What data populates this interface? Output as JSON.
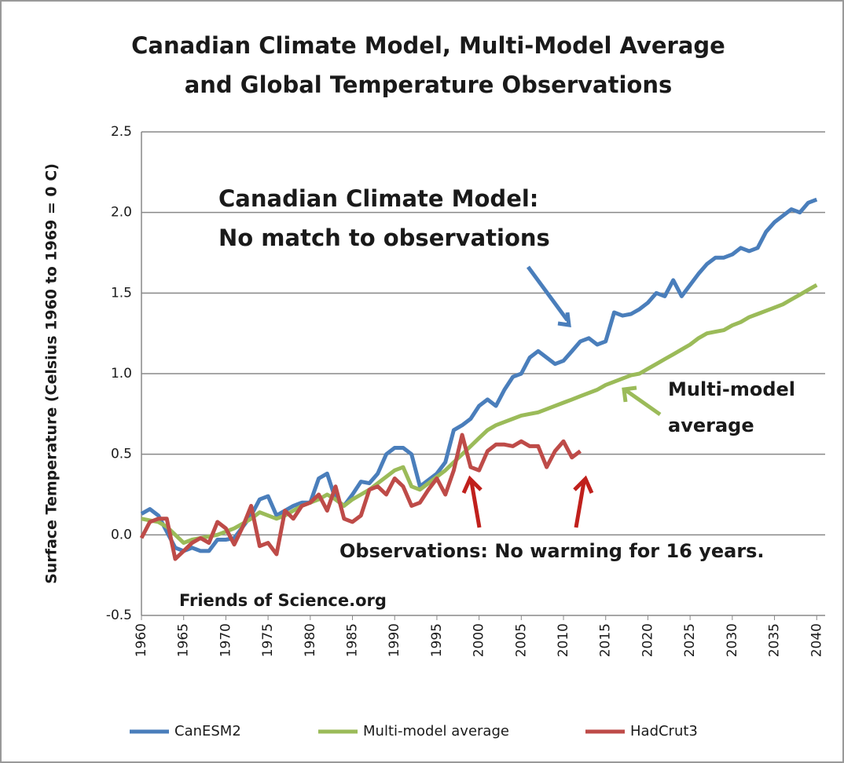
{
  "chart_data": {
    "type": "line",
    "title": [
      "Canadian Climate Model, Multi-Model Average",
      "and Global Temperature Observations"
    ],
    "y_label": "Surface Temperature  (Celsius 1960 to 1969 = 0 C)",
    "annotations": [
      "Canadian Climate Model:",
      "No match to observations",
      "Multi-model",
      "average",
      "Observations: No warming for 16 years.",
      "Friends of Science.org"
    ],
    "x": [
      1960,
      1961,
      1962,
      1963,
      1964,
      1965,
      1966,
      1967,
      1968,
      1969,
      1970,
      1971,
      1972,
      1973,
      1974,
      1975,
      1976,
      1977,
      1978,
      1979,
      1980,
      1981,
      1982,
      1983,
      1984,
      1985,
      1986,
      1987,
      1988,
      1989,
      1990,
      1991,
      1992,
      1993,
      1994,
      1995,
      1996,
      1997,
      1998,
      1999,
      2000,
      2001,
      2002,
      2003,
      2004,
      2005,
      2006,
      2007,
      2008,
      2009,
      2010,
      2011,
      2012,
      2013,
      2014,
      2015,
      2016,
      2017,
      2018,
      2019,
      2020,
      2021,
      2022,
      2023,
      2024,
      2025,
      2026,
      2027,
      2028,
      2029,
      2030,
      2031,
      2032,
      2033,
      2034,
      2035,
      2036,
      2037,
      2038,
      2039,
      2040
    ],
    "xlim": [
      1960,
      2041
    ],
    "xticks": [
      1960,
      1965,
      1970,
      1975,
      1980,
      1985,
      1990,
      1995,
      2000,
      2005,
      2010,
      2015,
      2020,
      2025,
      2030,
      2035,
      2040
    ],
    "ylim": [
      -0.5,
      2.5
    ],
    "yticks": [
      {
        "value": -0.5,
        "label": "-0.5"
      },
      {
        "value": 0,
        "label": "0.0"
      },
      {
        "value": 0.5,
        "label": "0.5"
      },
      {
        "value": 1,
        "label": "1.0"
      },
      {
        "value": 1.5,
        "label": "1.5"
      },
      {
        "value": 2,
        "label": "2.0"
      },
      {
        "value": 2.5,
        "label": "2.5"
      }
    ],
    "grid": true,
    "legend": "bottom",
    "series": [
      {
        "name": "CanESM2",
        "color": "#4a7ebb",
        "values": [
          0.13,
          0.16,
          0.12,
          0.02,
          -0.08,
          -0.1,
          -0.08,
          -0.1,
          -0.1,
          -0.03,
          -0.03,
          -0.02,
          0.05,
          0.12,
          0.22,
          0.24,
          0.12,
          0.15,
          0.18,
          0.2,
          0.2,
          0.35,
          0.38,
          0.22,
          0.18,
          0.25,
          0.33,
          0.32,
          0.38,
          0.5,
          0.54,
          0.54,
          0.5,
          0.3,
          0.34,
          0.38,
          0.45,
          0.65,
          0.68,
          0.72,
          0.8,
          0.84,
          0.8,
          0.9,
          0.98,
          1.0,
          1.1,
          1.14,
          1.1,
          1.06,
          1.08,
          1.14,
          1.2,
          1.22,
          1.18,
          1.2,
          1.38,
          1.36,
          1.37,
          1.4,
          1.44,
          1.5,
          1.48,
          1.58,
          1.48,
          1.55,
          1.62,
          1.68,
          1.72,
          1.72,
          1.74,
          1.78,
          1.76,
          1.78,
          1.88,
          1.94,
          1.98,
          2.02,
          2.0,
          2.06,
          2.08
        ]
      },
      {
        "name": "Multi-model average",
        "color": "#9bbb59",
        "values": [
          0.1,
          0.09,
          0.08,
          0.05,
          0.0,
          -0.05,
          -0.03,
          -0.02,
          -0.01,
          0.0,
          0.02,
          0.04,
          0.07,
          0.1,
          0.14,
          0.12,
          0.1,
          0.12,
          0.15,
          0.18,
          0.2,
          0.22,
          0.25,
          0.22,
          0.18,
          0.22,
          0.25,
          0.28,
          0.32,
          0.36,
          0.4,
          0.42,
          0.3,
          0.28,
          0.32,
          0.36,
          0.4,
          0.45,
          0.5,
          0.55,
          0.6,
          0.65,
          0.68,
          0.7,
          0.72,
          0.74,
          0.75,
          0.76,
          0.78,
          0.8,
          0.82,
          0.84,
          0.86,
          0.88,
          0.9,
          0.93,
          0.95,
          0.97,
          0.99,
          1.0,
          1.03,
          1.06,
          1.09,
          1.12,
          1.15,
          1.18,
          1.22,
          1.25,
          1.26,
          1.27,
          1.3,
          1.32,
          1.35,
          1.37,
          1.39,
          1.41,
          1.43,
          1.46,
          1.49,
          1.52,
          1.55
        ]
      },
      {
        "name": "HadCrut3",
        "color": "#be4b48",
        "values": [
          -0.02,
          0.08,
          0.1,
          0.1,
          -0.15,
          -0.1,
          -0.05,
          -0.02,
          -0.05,
          0.08,
          0.04,
          -0.06,
          0.05,
          0.18,
          -0.07,
          -0.05,
          -0.12,
          0.15,
          0.1,
          0.18,
          0.2,
          0.25,
          0.15,
          0.3,
          0.1,
          0.08,
          0.12,
          0.28,
          0.3,
          0.25,
          0.35,
          0.3,
          0.18,
          0.2,
          0.28,
          0.35,
          0.25,
          0.4,
          0.62,
          0.42,
          0.4,
          0.52,
          0.56,
          0.56,
          0.55,
          0.58,
          0.55,
          0.55,
          0.42,
          0.52,
          0.58,
          0.48,
          0.52,
          null,
          null,
          null,
          null,
          null,
          null,
          null,
          null,
          null,
          null,
          null,
          null,
          null,
          null,
          null,
          null,
          null,
          null,
          null,
          null,
          null,
          null,
          null,
          null,
          null,
          null,
          null,
          null
        ]
      }
    ]
  }
}
